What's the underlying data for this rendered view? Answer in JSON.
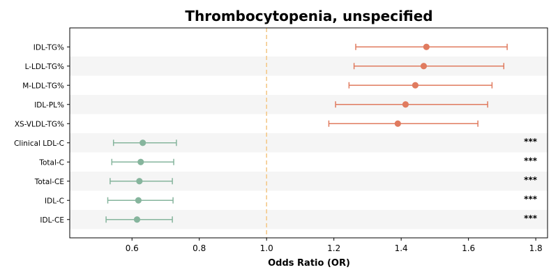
{
  "chart_data": {
    "type": "forest",
    "title": "Thrombocytopenia, unspecified",
    "xlabel": "Odds Ratio (OR)",
    "xlim": [
      0.415,
      1.835
    ],
    "xticks": [
      0.6,
      0.8,
      1.0,
      1.2,
      1.4,
      1.6,
      1.8
    ],
    "xtick_labels": [
      "0.6",
      "0.8",
      "1.0",
      "1.2",
      "1.4",
      "1.6",
      "1.8"
    ],
    "reference_line": 1.0,
    "colors": {
      "positive": "#e07b5f",
      "negative": "#86b59d",
      "reference": "#f4c98a",
      "stripe": "#f5f5f5"
    },
    "rows": [
      {
        "label": "IDL-TG%",
        "or": 1.475,
        "lower": 1.265,
        "upper": 1.715,
        "sig": ""
      },
      {
        "label": "L-LDL-TG%",
        "or": 1.467,
        "lower": 1.26,
        "upper": 1.705,
        "sig": ""
      },
      {
        "label": "M-LDL-TG%",
        "or": 1.442,
        "lower": 1.245,
        "upper": 1.67,
        "sig": ""
      },
      {
        "label": "IDL-PL%",
        "or": 1.413,
        "lower": 1.205,
        "upper": 1.657,
        "sig": ""
      },
      {
        "label": "XS-VLDL-TG%",
        "or": 1.39,
        "lower": 1.185,
        "upper": 1.628,
        "sig": ""
      },
      {
        "label": "Clinical LDL-C",
        "or": 0.632,
        "lower": 0.545,
        "upper": 0.732,
        "sig": "***"
      },
      {
        "label": "Total-C",
        "or": 0.626,
        "lower": 0.54,
        "upper": 0.724,
        "sig": "***"
      },
      {
        "label": "Total-CE",
        "or": 0.622,
        "lower": 0.535,
        "upper": 0.72,
        "sig": "***"
      },
      {
        "label": "IDL-C",
        "or": 0.619,
        "lower": 0.528,
        "upper": 0.722,
        "sig": "***"
      },
      {
        "label": "IDL-CE",
        "or": 0.615,
        "lower": 0.523,
        "upper": 0.72,
        "sig": "***"
      }
    ]
  }
}
